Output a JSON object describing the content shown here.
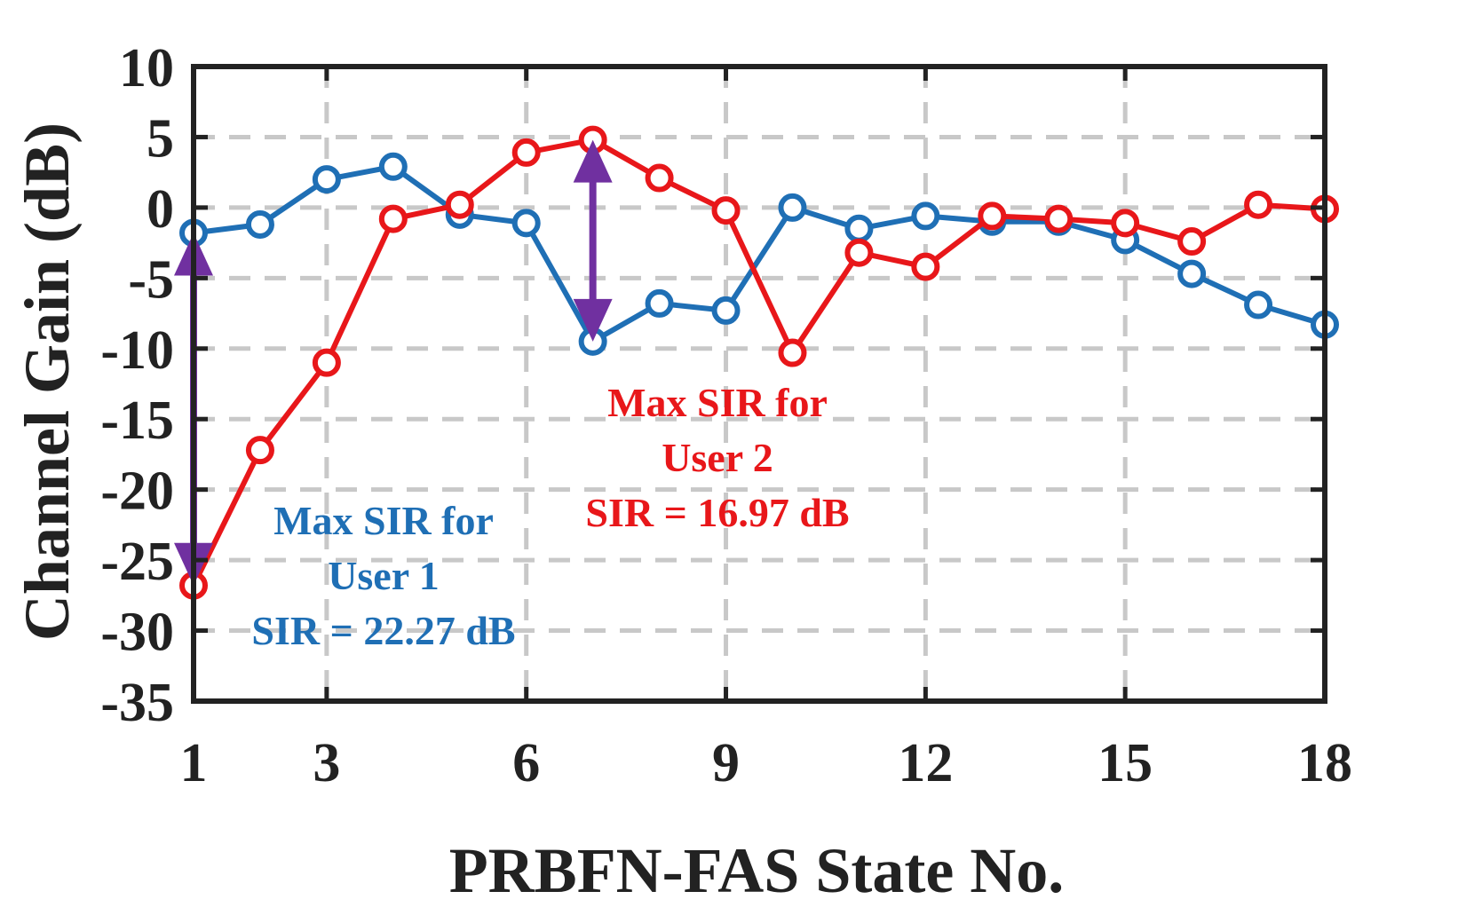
{
  "chart_data": {
    "type": "line",
    "title": "",
    "xlabel": "PRBFN-FAS State No.",
    "ylabel": "Channel Gain (dB)",
    "xlim": [
      1,
      18
    ],
    "ylim": [
      -35,
      10
    ],
    "xticks": [
      1,
      3,
      6,
      9,
      12,
      15,
      18
    ],
    "xtick_labels": [
      "1",
      "3",
      "6",
      "9",
      "12",
      "15",
      "18"
    ],
    "yticks": [
      10,
      5,
      0,
      -5,
      -10,
      -15,
      -20,
      -25,
      -30,
      -35
    ],
    "ytick_labels": [
      "10",
      "5",
      "0",
      "-5",
      "-10",
      "-15",
      "-20",
      "-25",
      "-30",
      "-35"
    ],
    "grid": true,
    "x": [
      1,
      2,
      3,
      4,
      5,
      6,
      7,
      8,
      9,
      10,
      11,
      12,
      13,
      14,
      15,
      16,
      17,
      18
    ],
    "series": [
      {
        "name": "User 1",
        "color": "#1f6fb5",
        "values": [
          -1.8,
          -1.2,
          2.0,
          2.9,
          -0.5,
          -1.1,
          -9.5,
          -6.8,
          -7.3,
          0.0,
          -1.5,
          -0.6,
          -1.0,
          -1.0,
          -2.3,
          -4.7,
          -6.9,
          -8.3
        ]
      },
      {
        "name": "User 2",
        "color": "#e8171a",
        "values": [
          -26.8,
          -17.2,
          -11.0,
          -0.8,
          0.2,
          3.9,
          4.8,
          2.1,
          -0.2,
          -10.3,
          -3.2,
          -4.2,
          -0.6,
          -0.8,
          -1.1,
          -2.4,
          0.2,
          -0.1
        ]
      }
    ],
    "arrow_color": "#7030a0",
    "arrows": [
      {
        "x": 1,
        "from": -1.8,
        "to": -26.8
      },
      {
        "x": 7,
        "from": 4.8,
        "to": -9.5
      }
    ],
    "annotations": [
      {
        "id": "user1",
        "color": "#1f6fb5",
        "lines": [
          "Max SIR for",
          "User 1",
          "SIR = 22.27 dB"
        ]
      },
      {
        "id": "user2",
        "color": "#e8171a",
        "lines": [
          "Max SIR for",
          "User 2",
          "SIR = 16.97 dB"
        ]
      }
    ]
  }
}
